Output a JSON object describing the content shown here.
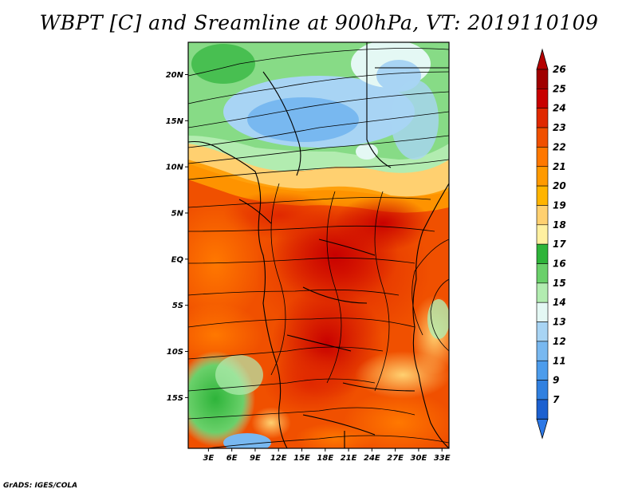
{
  "title": "WBPT [C] and Sreamline at 900hPa, VT: 2019110109",
  "credit": "GrADS: IGES/COLA",
  "map": {
    "lat_labels": [
      "20N",
      "15N",
      "10N",
      "5N",
      "EQ",
      "5S",
      "10S",
      "15S"
    ],
    "lon_labels": [
      "3E",
      "6E",
      "9E",
      "12E",
      "15E",
      "18E",
      "21E",
      "24E",
      "27E",
      "30E",
      "33E"
    ],
    "lat_range": [
      -20.5,
      23.5
    ],
    "lon_range": [
      0.4,
      33.9
    ]
  },
  "colorbar": {
    "labels": [
      "26",
      "25",
      "24",
      "23",
      "22",
      "21",
      "20",
      "19",
      "18",
      "17",
      "16",
      "15",
      "14",
      "13",
      "12",
      "11",
      "9",
      "7"
    ],
    "colors": [
      "#a00000",
      "#c80000",
      "#e02800",
      "#f05000",
      "#ff7800",
      "#ff9a00",
      "#ffb400",
      "#ffd070",
      "#fff0a0",
      "#2eb43a",
      "#6ad06a",
      "#b2ecb0",
      "#e4f8f4",
      "#a8d4f4",
      "#78b8f0",
      "#4c9cec",
      "#3080e0",
      "#1c60d0"
    ],
    "top_color": "#b40000",
    "bottom_color": "#2c78e6"
  }
}
